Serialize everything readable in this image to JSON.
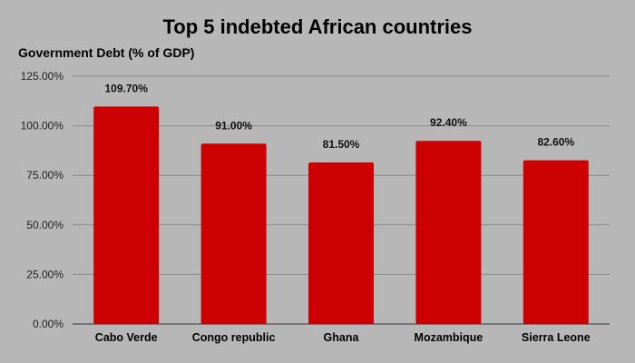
{
  "chart_data": {
    "type": "bar",
    "title": "Top 5 indebted African countries",
    "ylabel": "Government Debt (% of GDP)",
    "xlabel": "",
    "categories": [
      "Cabo Verde",
      "Congo republic",
      "Ghana",
      "Mozambique",
      "Sierra Leone"
    ],
    "values": [
      109.7,
      91.0,
      81.5,
      92.4,
      82.6
    ],
    "data_labels": [
      "109.70%",
      "91.00%",
      "81.50%",
      "92.40%",
      "82.60%"
    ],
    "ylim": [
      0,
      125
    ],
    "yticks": [
      0,
      25,
      50,
      75,
      100,
      125
    ],
    "ytick_labels": [
      "0.00%",
      "25.00%",
      "50.00%",
      "75.00%",
      "100.00%",
      "125.00%"
    ],
    "grid": true,
    "legend": "none",
    "bar_color": "#cc0000",
    "background_color": "#b7b7b7"
  }
}
